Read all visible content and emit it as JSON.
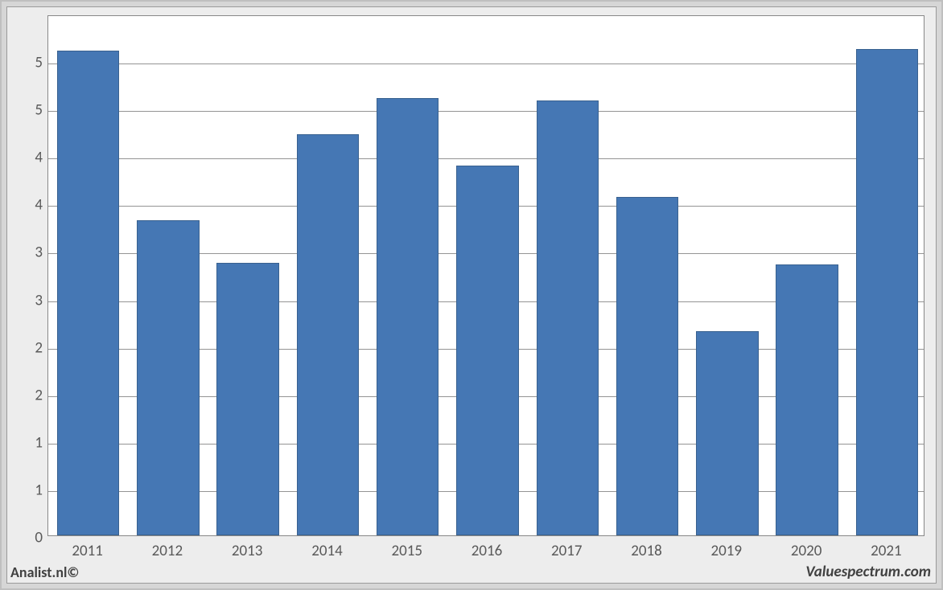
{
  "chart": {
    "type": "bar",
    "categories": [
      "2011",
      "2012",
      "2013",
      "2014",
      "2015",
      "2016",
      "2017",
      "2018",
      "2019",
      "2020",
      "2021"
    ],
    "values": [
      5.1,
      3.32,
      2.87,
      4.22,
      4.6,
      3.89,
      4.58,
      3.56,
      2.15,
      2.85,
      5.12
    ],
    "ylim": [
      0,
      5.5
    ],
    "ytick_labels": [
      "0",
      "1",
      "1",
      "2",
      "2",
      "3",
      "3",
      "4",
      "4",
      "5",
      "5"
    ],
    "ytick_positions": [
      0,
      0.5,
      1,
      1.5,
      2,
      2.5,
      3,
      3.5,
      4,
      4.5,
      5
    ],
    "bar_color": "#4577b4",
    "bar_border_color": "#39618f",
    "background_color": "#ffffff",
    "grid_color": "#888888",
    "panel_color": "#ededed",
    "outer_color": "#d6d6d6",
    "label_fontsize": 19,
    "bar_width_ratio": 0.78
  },
  "footer": {
    "left": "Analist.nl©",
    "right": "Valuespectrum.com"
  }
}
